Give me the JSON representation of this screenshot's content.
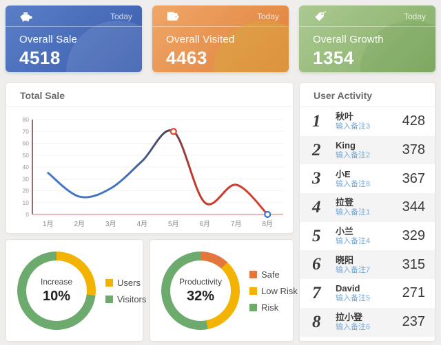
{
  "cards": [
    {
      "period": "Today",
      "title": "Overall Sale",
      "value": "4518",
      "icon": "piggy-bank-icon",
      "gradient_from": "#5a7fc6",
      "gradient_to": "#3a5dae"
    },
    {
      "period": "Today",
      "title": "Overall Visited",
      "value": "4463",
      "icon": "wallet-icon",
      "gradient_from": "#efa768",
      "gradient_to": "#e07f3a"
    },
    {
      "period": "Today",
      "title": "Overall Growth",
      "value": "1354",
      "icon": "tag-icon",
      "gradient_from": "#abc991",
      "gradient_to": "#84ae66"
    }
  ],
  "total_sale_panel": {
    "title": "Total Sale"
  },
  "donut1_panel": {
    "center_label": "Increase",
    "center_value": "10%"
  },
  "donut2_panel": {
    "center_label": "Productivity",
    "center_value": "32%"
  },
  "user_activity": {
    "title": "User Activity",
    "rows": [
      {
        "rank": "1",
        "name": "秋叶",
        "note": "输入备注3",
        "value": "428"
      },
      {
        "rank": "2",
        "name": "King",
        "note": "输入备注2",
        "value": "378"
      },
      {
        "rank": "3",
        "name": "小E",
        "note": "输入备注8",
        "value": "367"
      },
      {
        "rank": "4",
        "name": "拉登",
        "note": "输入备注1",
        "value": "344"
      },
      {
        "rank": "5",
        "name": "小兰",
        "note": "输入备注4",
        "value": "329"
      },
      {
        "rank": "6",
        "name": "晓阳",
        "note": "输入备注7",
        "value": "315"
      },
      {
        "rank": "7",
        "name": "David",
        "note": "输入备注5",
        "value": "271"
      },
      {
        "rank": "8",
        "name": "拉小登",
        "note": "输入备注6",
        "value": "237"
      }
    ]
  },
  "chart_data": [
    {
      "type": "line",
      "title": "Total Sale",
      "x": [
        "1月",
        "2月",
        "3月",
        "4月",
        "5月",
        "6月",
        "7月",
        "8月"
      ],
      "values": [
        35,
        15,
        22,
        45,
        70,
        10,
        25,
        0
      ],
      "smooth": true,
      "ylim": [
        0,
        80
      ],
      "ytick_step": 10,
      "grid": "faint",
      "xlabel": "",
      "ylabel": "",
      "yaxis_color": "#7a4a4a",
      "xaxis_color": "#e5a0a0",
      "line_gradient": [
        {
          "offset": 0,
          "color": "#4478c8"
        },
        {
          "offset": 0.34,
          "color": "#4273c0"
        },
        {
          "offset": 0.54,
          "color": "#4b445c"
        },
        {
          "offset": 0.66,
          "color": "#c03a2c"
        },
        {
          "offset": 1,
          "color": "#d8402e"
        }
      ],
      "markers": [
        {
          "index": 4,
          "x": "5月",
          "value": 70,
          "color": "#e04a2b"
        },
        {
          "index": 7,
          "x": "8月",
          "value": 0,
          "color": "#3a74c9"
        }
      ]
    },
    {
      "type": "pie",
      "title": "Increase",
      "center_label": "Increase",
      "center_value": "10%",
      "legend_position": "right",
      "segments": [
        {
          "label": "Users",
          "value": 27,
          "color": "#F2B303"
        },
        {
          "label": "Visitors",
          "value": 73,
          "color": "#6CAA6E"
        }
      ]
    },
    {
      "type": "pie",
      "title": "Productivity",
      "center_label": "Productivity",
      "center_value": "32%",
      "legend_position": "right",
      "segments": [
        {
          "label": "Safe",
          "value": 12,
          "color": "#E2763C"
        },
        {
          "label": "Low Risk",
          "value": 35,
          "color": "#F2B303"
        },
        {
          "label": "Risk",
          "value": 53,
          "color": "#6CAA6E"
        }
      ]
    }
  ]
}
